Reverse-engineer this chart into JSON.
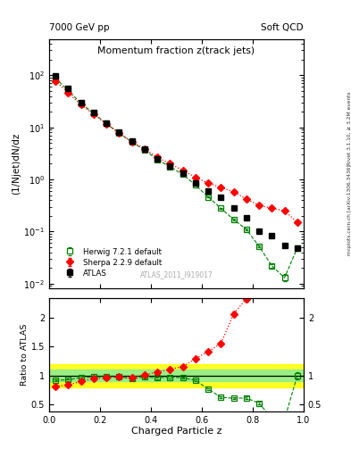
{
  "title_main": "Momentum fraction z(track jets)",
  "title_left": "7000 GeV pp",
  "title_right": "Soft QCD",
  "xlabel": "Charged Particle z",
  "ylabel_main": "(1/Njet)dN/dz",
  "ylabel_ratio": "Ratio to ATLAS",
  "right_label_top": "Rivet 3.1.10, ≥ 3.2M events",
  "right_label_bottom": "mcplots.cern.ch [arXiv:1306.3436]",
  "watermark": "ATLAS_2011_I919017",
  "atlas_z": [
    0.025,
    0.075,
    0.125,
    0.175,
    0.225,
    0.275,
    0.325,
    0.375,
    0.425,
    0.475,
    0.525,
    0.575,
    0.625,
    0.675,
    0.725,
    0.775,
    0.825,
    0.875,
    0.925,
    0.975
  ],
  "atlas_y": [
    96.0,
    55.0,
    30.0,
    19.0,
    12.0,
    8.0,
    5.5,
    3.8,
    2.5,
    1.8,
    1.3,
    0.85,
    0.6,
    0.45,
    0.28,
    0.18,
    0.1,
    0.085,
    0.055,
    0.048
  ],
  "atlas_yerr": [
    4.0,
    2.5,
    1.2,
    0.8,
    0.5,
    0.35,
    0.22,
    0.15,
    0.1,
    0.08,
    0.055,
    0.04,
    0.025,
    0.02,
    0.012,
    0.008,
    0.005,
    0.004,
    0.003,
    0.003
  ],
  "herwig_z": [
    0.025,
    0.075,
    0.125,
    0.175,
    0.225,
    0.275,
    0.325,
    0.375,
    0.425,
    0.475,
    0.525,
    0.575,
    0.625,
    0.675,
    0.725,
    0.775,
    0.825,
    0.875,
    0.925,
    0.975
  ],
  "herwig_y": [
    88.0,
    51.0,
    29.0,
    18.5,
    11.8,
    7.8,
    5.2,
    3.7,
    2.4,
    1.75,
    1.25,
    0.78,
    0.46,
    0.28,
    0.17,
    0.11,
    0.052,
    0.022,
    0.013,
    0.048
  ],
  "herwig_yerr": [
    2.0,
    1.2,
    0.7,
    0.45,
    0.28,
    0.18,
    0.12,
    0.08,
    0.055,
    0.038,
    0.025,
    0.016,
    0.01,
    0.007,
    0.005,
    0.004,
    0.0025,
    0.002,
    0.002,
    0.003
  ],
  "sherpa_z": [
    0.025,
    0.075,
    0.125,
    0.175,
    0.225,
    0.275,
    0.325,
    0.375,
    0.425,
    0.475,
    0.525,
    0.575,
    0.625,
    0.675,
    0.725,
    0.775,
    0.825,
    0.875,
    0.925,
    0.975
  ],
  "sherpa_y": [
    78.0,
    46.0,
    27.0,
    18.0,
    11.5,
    7.8,
    5.3,
    3.85,
    2.65,
    2.0,
    1.5,
    1.1,
    0.85,
    0.7,
    0.58,
    0.42,
    0.32,
    0.28,
    0.25,
    0.15
  ],
  "sherpa_yerr": [
    2.5,
    1.4,
    0.8,
    0.5,
    0.3,
    0.2,
    0.13,
    0.09,
    0.06,
    0.045,
    0.032,
    0.024,
    0.018,
    0.015,
    0.012,
    0.009,
    0.007,
    0.006,
    0.006,
    0.006
  ],
  "atlas_color": "#000000",
  "herwig_color": "#008000",
  "sherpa_color": "#ff0000",
  "ylim_main": [
    0.008,
    500
  ],
  "ylim_ratio": [
    0.38,
    2.35
  ],
  "xlim": [
    0.0,
    1.0
  ]
}
